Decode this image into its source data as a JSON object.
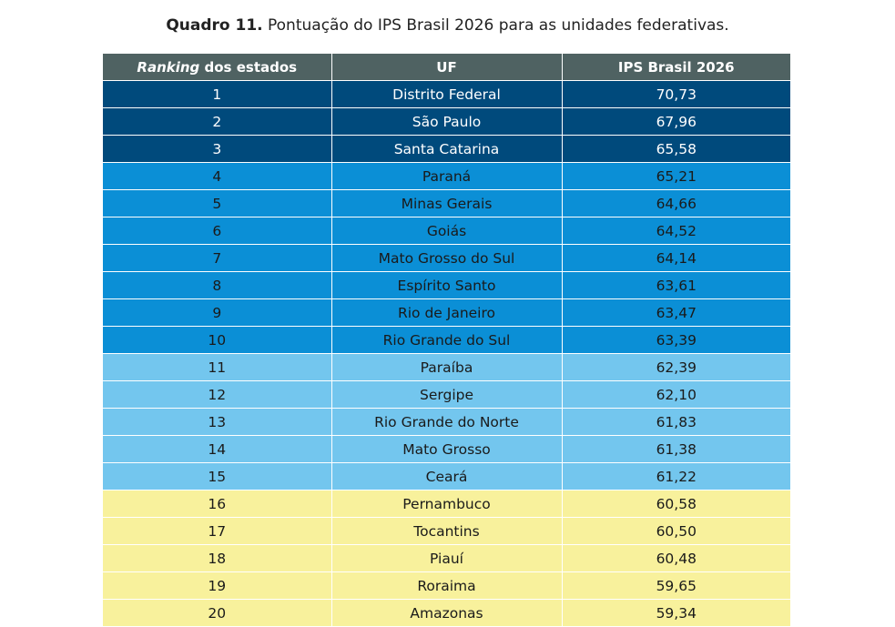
{
  "caption": {
    "label": "Quadro 11.",
    "text": "Pontuação do IPS Brasil 2026 para as unidades federativas."
  },
  "table": {
    "headers": {
      "rank_italic": "Ranking",
      "rank_rest": " dos estados",
      "uf": "UF",
      "score": "IPS Brasil 2026"
    },
    "tier_colors": {
      "t1": "#004a7c",
      "t2": "#0b8fd6",
      "t3": "#73c6ee",
      "t4": "#f8f19c"
    },
    "rows": [
      {
        "rank": "1",
        "uf": "Distrito Federal",
        "score": "70,73",
        "tier": "t1"
      },
      {
        "rank": "2",
        "uf": "São Paulo",
        "score": "67,96",
        "tier": "t1"
      },
      {
        "rank": "3",
        "uf": "Santa Catarina",
        "score": "65,58",
        "tier": "t1"
      },
      {
        "rank": "4",
        "uf": "Paraná",
        "score": "65,21",
        "tier": "t2"
      },
      {
        "rank": "5",
        "uf": "Minas Gerais",
        "score": "64,66",
        "tier": "t2"
      },
      {
        "rank": "6",
        "uf": "Goiás",
        "score": "64,52",
        "tier": "t2"
      },
      {
        "rank": "7",
        "uf": "Mato Grosso do Sul",
        "score": "64,14",
        "tier": "t2"
      },
      {
        "rank": "8",
        "uf": "Espírito Santo",
        "score": "63,61",
        "tier": "t2"
      },
      {
        "rank": "9",
        "uf": "Rio de Janeiro",
        "score": "63,47",
        "tier": "t2"
      },
      {
        "rank": "10",
        "uf": "Rio Grande do Sul",
        "score": "63,39",
        "tier": "t2"
      },
      {
        "rank": "11",
        "uf": "Paraíba",
        "score": "62,39",
        "tier": "t3"
      },
      {
        "rank": "12",
        "uf": "Sergipe",
        "score": "62,10",
        "tier": "t3"
      },
      {
        "rank": "13",
        "uf": "Rio Grande do Norte",
        "score": "61,83",
        "tier": "t3"
      },
      {
        "rank": "14",
        "uf": "Mato Grosso",
        "score": "61,38",
        "tier": "t3"
      },
      {
        "rank": "15",
        "uf": "Ceará",
        "score": "61,22",
        "tier": "t3"
      },
      {
        "rank": "16",
        "uf": "Pernambuco",
        "score": "60,58",
        "tier": "t4"
      },
      {
        "rank": "17",
        "uf": "Tocantins",
        "score": "60,50",
        "tier": "t4"
      },
      {
        "rank": "18",
        "uf": "Piauí",
        "score": "60,48",
        "tier": "t4"
      },
      {
        "rank": "19",
        "uf": "Roraima",
        "score": "59,65",
        "tier": "t4"
      },
      {
        "rank": "20",
        "uf": "Amazonas",
        "score": "59,34",
        "tier": "t4"
      }
    ]
  }
}
